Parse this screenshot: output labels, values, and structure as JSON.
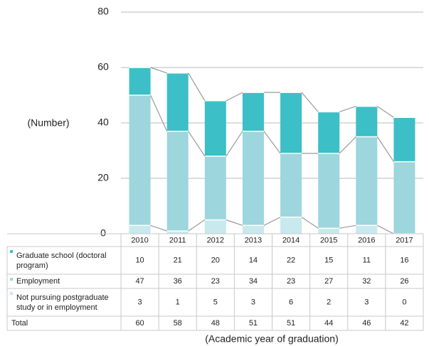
{
  "chart_data": {
    "type": "stacked_bar",
    "y_label": "(Number)",
    "x_label": "(Academic year of graduation)",
    "categories": [
      "2010",
      "2011",
      "2012",
      "2013",
      "2014",
      "2015",
      "2016",
      "2017"
    ],
    "series": [
      {
        "name": "Graduate school (doctoral program)",
        "color": "#3cbfc6",
        "values": [
          10,
          21,
          20,
          14,
          22,
          15,
          11,
          16
        ]
      },
      {
        "name": "Employment",
        "color": "#9dd6dc",
        "values": [
          47,
          36,
          23,
          34,
          23,
          27,
          32,
          26
        ]
      },
      {
        "name": "Not pursuing postgraduate study or in employment",
        "color": "#c8e9ee",
        "values": [
          3,
          1,
          5,
          3,
          6,
          2,
          3,
          0
        ]
      }
    ],
    "total_label": "Total",
    "totals": [
      60,
      58,
      48,
      51,
      51,
      44,
      46,
      42
    ],
    "ylim": [
      0,
      80
    ],
    "yticks": [
      0,
      20,
      40,
      60,
      80
    ],
    "grid": true
  }
}
